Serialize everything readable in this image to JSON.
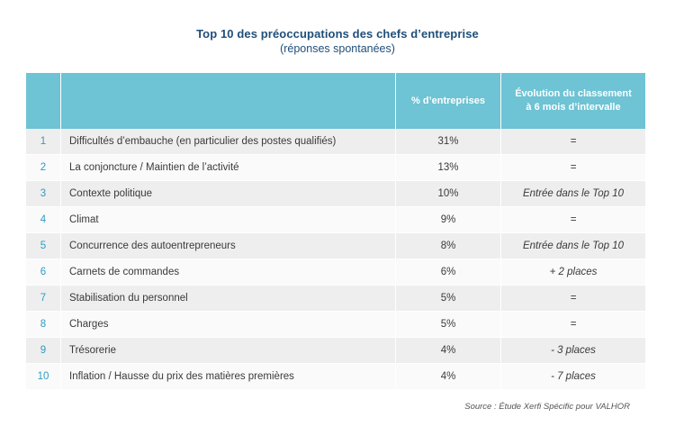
{
  "title": "Top 10 des préoccupations des chefs d’entreprise",
  "subtitle": "(réponses spontanées)",
  "table": {
    "headers": {
      "rank": "",
      "label": "",
      "pct": "% d’entreprises",
      "evolution_line1": "Évolution du classement",
      "evolution_line2": "à 6 mois d’intervalle"
    },
    "rows": [
      {
        "rank": "1",
        "label": "Difficultés d’embauche (en particulier des postes qualifiés)",
        "pct": "31%",
        "evolution": "="
      },
      {
        "rank": "2",
        "label": "La conjoncture / Maintien de l’activité",
        "pct": "13%",
        "evolution": "="
      },
      {
        "rank": "3",
        "label": "Contexte politique",
        "pct": "10%",
        "evolution": "Entrée dans le Top 10"
      },
      {
        "rank": "4",
        "label": "Climat",
        "pct": "9%",
        "evolution": "="
      },
      {
        "rank": "5",
        "label": "Concurrence des autoentrepreneurs",
        "pct": "8%",
        "evolution": "Entrée dans le Top 10"
      },
      {
        "rank": "6",
        "label": "Carnets de commandes",
        "pct": "6%",
        "evolution": "+ 2 places"
      },
      {
        "rank": "7",
        "label": "Stabilisation du personnel",
        "pct": "5%",
        "evolution": "="
      },
      {
        "rank": "8",
        "label": "Charges",
        "pct": "5%",
        "evolution": "="
      },
      {
        "rank": "9",
        "label": "Trésorerie",
        "pct": "4%",
        "evolution": "- 3 places"
      },
      {
        "rank": "10",
        "label": "Inflation / Hausse du prix des matières premières",
        "pct": "4%",
        "evolution": "- 7 places"
      }
    ]
  },
  "source": "Source : Étude Xerfi Spécific pour VALHOR",
  "colors": {
    "header_bg": "#6ec3d4",
    "title": "#1f4e79",
    "rank": "#2e9cc2",
    "row_odd": "#eeeeee",
    "row_even": "#fafafa"
  }
}
